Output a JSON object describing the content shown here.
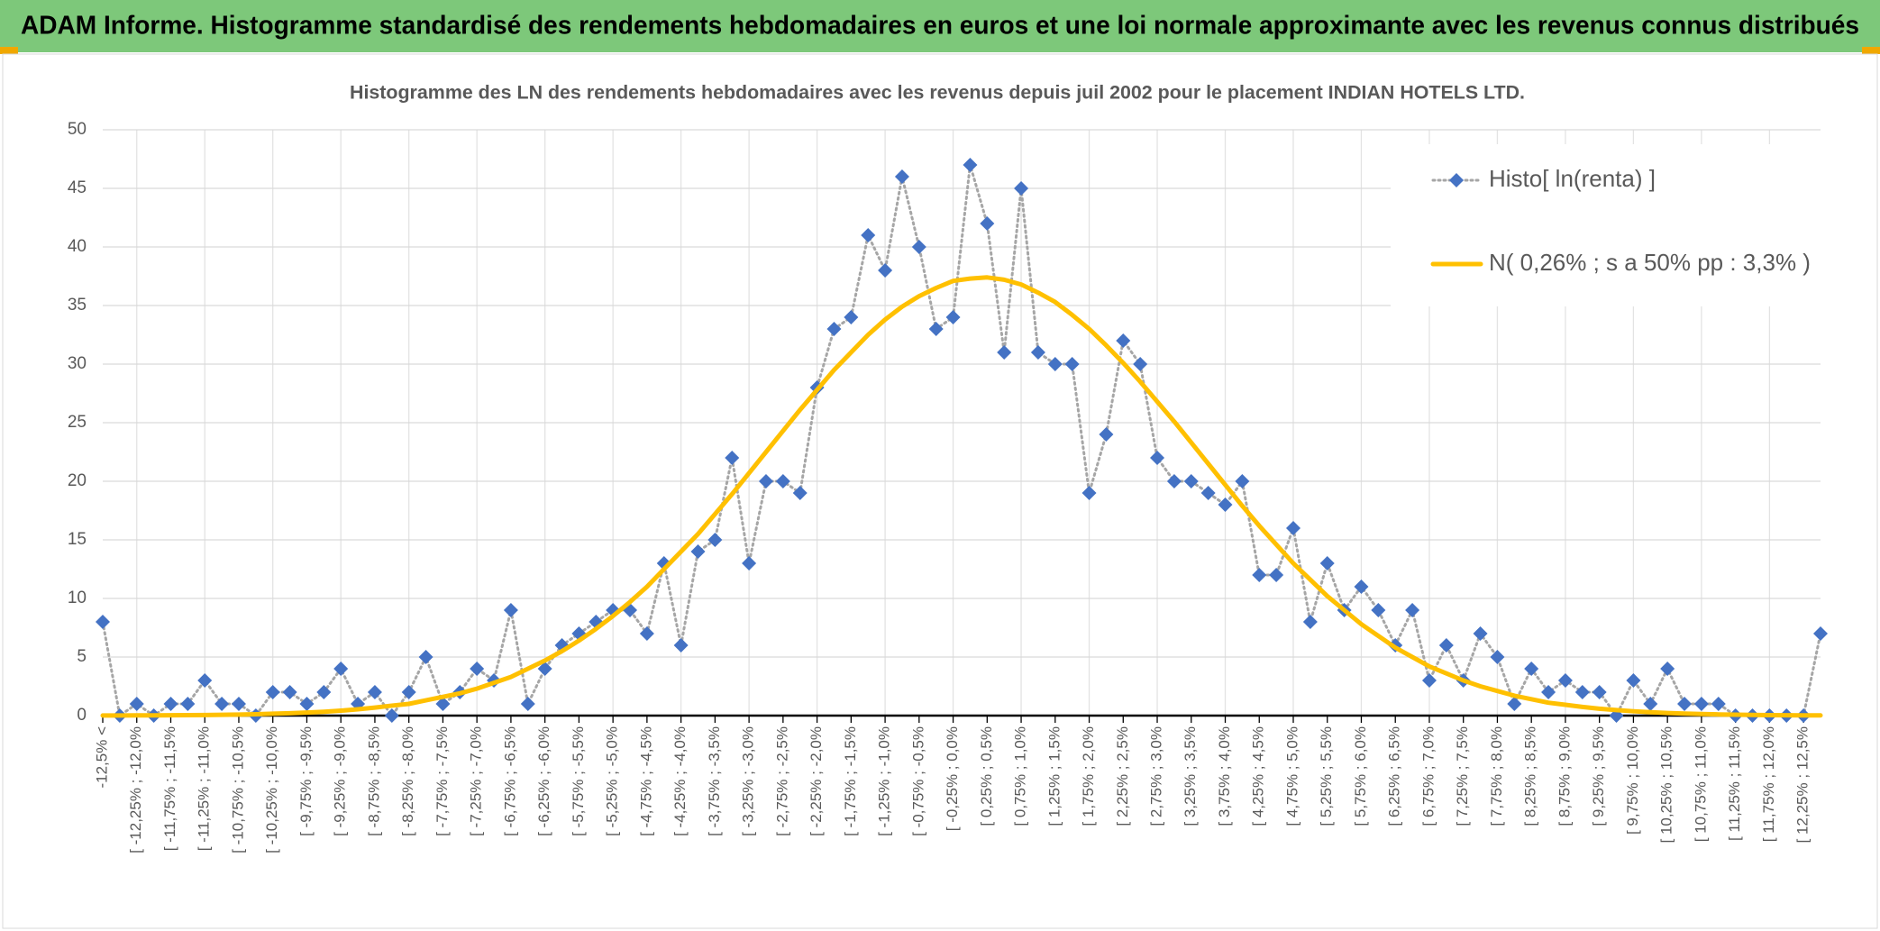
{
  "header": {
    "title": "ADAM Informe. Histogramme standardisé des rendements hebdomadaires en euros et une loi normale approximante avec les revenus connus distribués"
  },
  "chart_data": {
    "type": "line",
    "title": "Histogramme des LN des rendements hebdomadaires avec les revenus depuis juil 2002 pour le placement INDIAN HOTELS LTD.",
    "categories": [
      "-12,5% <",
      null,
      "[ -12,25% ; -12,0%",
      null,
      "[ -11,75% ; -11,5%",
      null,
      "[ -11,25% ; -11,0%",
      null,
      "[ -10,75% ; -10,5%",
      null,
      "[ -10,25% ; -10,0%",
      null,
      "[ -9,75% ; -9,5%",
      null,
      "[ -9,25% ; -9,0%",
      null,
      "[ -8,75% ; -8,5%",
      null,
      "[ -8,25% ; -8,0%",
      null,
      "[ -7,75% ; -7,5%",
      null,
      "[ -7,25% ; -7,0%",
      null,
      "[ -6,75% ; -6,5%",
      null,
      "[ -6,25% ; -6,0%",
      null,
      "[ -5,75% ; -5,5%",
      null,
      "[ -5,25% ; -5,0%",
      null,
      "[ -4,75% ; -4,5%",
      null,
      "[ -4,25% ; -4,0%",
      null,
      "[ -3,75% ; -3,5%",
      null,
      "[ -3,25% ; -3,0%",
      null,
      "[ -2,75% ; -2,5%",
      null,
      "[ -2,25% ; -2,0%",
      null,
      "[ -1,75% ; -1,5%",
      null,
      "[ -1,25% ; -1,0%",
      null,
      "[ -0,75% ; -0,5%",
      null,
      "[ -0,25% ; 0,0%",
      null,
      "[ 0,25% ; 0,5%",
      null,
      "[ 0,75% ; 1,0%",
      null,
      "[ 1,25% ; 1,5%",
      null,
      "[ 1,75% ; 2,0%",
      null,
      "[ 2,25% ; 2,5%",
      null,
      "[ 2,75% ; 3,0%",
      null,
      "[ 3,25% ; 3,5%",
      null,
      "[ 3,75% ; 4,0%",
      null,
      "[ 4,25% ; 4,5%",
      null,
      "[ 4,75% ; 5,0%",
      null,
      "[ 5,25% ; 5,5%",
      null,
      "[ 5,75% ; 6,0%",
      null,
      "[ 6,25% ; 6,5%",
      null,
      "[ 6,75% ; 7,0%",
      null,
      "[ 7,25% ; 7,5%",
      null,
      "[ 7,75% ; 8,0%",
      null,
      "[ 8,25% ; 8,5%",
      null,
      "[ 8,75% ; 9,0%",
      null,
      "[ 9,25% ; 9,5%",
      null,
      "[ 9,75% ; 10,0%",
      null,
      "[ 10,25% ; 10,5%",
      null,
      "[ 10,75% ; 11,0%",
      null,
      "[ 11,25% ; 11,5%",
      null,
      "[ 11,75% ; 12,0%",
      null,
      "[ 12,25% ; 12,5%",
      null
    ],
    "series": [
      {
        "name": "Histo[ ln(renta) ]",
        "color": "#4472c4",
        "line_color": "#a6a6a6",
        "line_style": "dotted",
        "marker": "diamond",
        "values": [
          8,
          0,
          1,
          0,
          1,
          1,
          3,
          1,
          1,
          0,
          2,
          2,
          1,
          2,
          4,
          1,
          2,
          0,
          2,
          5,
          1,
          2,
          4,
          3,
          9,
          1,
          4,
          6,
          7,
          8,
          9,
          9,
          7,
          13,
          6,
          14,
          15,
          22,
          13,
          20,
          20,
          19,
          28,
          33,
          34,
          41,
          38,
          46,
          40,
          33,
          34,
          47,
          42,
          31,
          45,
          31,
          30,
          30,
          19,
          24,
          32,
          30,
          22,
          20,
          20,
          19,
          18,
          20,
          12,
          12,
          16,
          8,
          13,
          9,
          11,
          9,
          6,
          9,
          3,
          6,
          3,
          7,
          5,
          1,
          4,
          2,
          3,
          2,
          2,
          0,
          3,
          1,
          4,
          1,
          1,
          1,
          0,
          0,
          0,
          0,
          0,
          7
        ]
      },
      {
        "name": "N( 0,26% ; s a 50% pp : 3,3% )",
        "color": "#ffc000",
        "line_style": "solid",
        "marker": "none",
        "values": [
          0.01,
          0.01,
          0.02,
          0.02,
          0.03,
          0.04,
          0.05,
          0.07,
          0.09,
          0.12,
          0.16,
          0.2,
          0.26,
          0.33,
          0.42,
          0.54,
          0.68,
          0.85,
          1.0,
          1.3,
          1.6,
          1.9,
          2.3,
          2.8,
          3.3,
          4.0,
          4.7,
          5.5,
          6.4,
          7.4,
          8.5,
          9.7,
          11.0,
          12.5,
          14.0,
          15.5,
          17.2,
          18.9,
          20.7,
          22.5,
          24.3,
          26.1,
          27.8,
          29.5,
          31.0,
          32.5,
          33.8,
          34.9,
          35.8,
          36.5,
          37.1,
          37.3,
          37.4,
          37.2,
          36.8,
          36.1,
          35.3,
          34.2,
          33.0,
          31.6,
          30.1,
          28.5,
          26.8,
          25.1,
          23.3,
          21.5,
          19.7,
          17.9,
          16.2,
          14.6,
          13.0,
          11.6,
          10.2,
          9.0,
          7.8,
          6.8,
          5.8,
          5.0,
          4.2,
          3.6,
          3.0,
          2.5,
          2.1,
          1.7,
          1.4,
          1.1,
          0.92,
          0.74,
          0.59,
          0.47,
          0.37,
          0.29,
          0.22,
          0.17,
          0.13,
          0.1,
          0.08,
          0.06,
          0.04,
          0.03,
          0.02,
          0.02
        ]
      }
    ],
    "ylim": [
      0,
      50
    ],
    "yticks": [
      0,
      5,
      10,
      15,
      20,
      25,
      30,
      35,
      40,
      45,
      50
    ],
    "grid": true,
    "legend_position": "top-right"
  }
}
